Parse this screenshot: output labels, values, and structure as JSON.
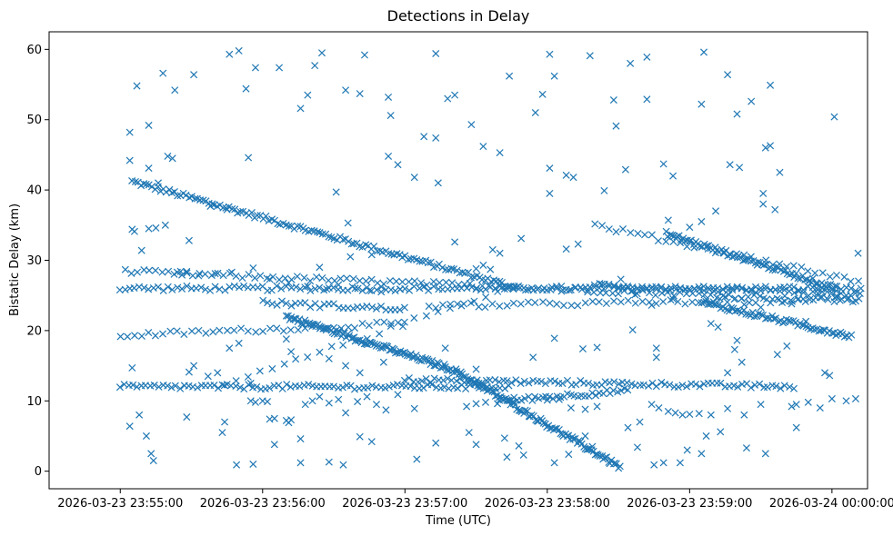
{
  "chart_data": {
    "type": "scatter",
    "title": "Detections in Delay",
    "xlabel": "Time (UTC)",
    "ylabel": "Bistatic Delay (km)",
    "marker": "x",
    "color": "#1f77b4",
    "grid": false,
    "x_unit": "seconds since 2026-03-23 23:55:00",
    "xlim": [
      -30,
      315
    ],
    "ylim": [
      -2.5,
      62.5
    ],
    "x_ticks": [
      {
        "value": 0,
        "label": "2026-03-23 23:55:00"
      },
      {
        "value": 60,
        "label": "2026-03-23 23:56:00"
      },
      {
        "value": 120,
        "label": "2026-03-23 23:57:00"
      },
      {
        "value": 180,
        "label": "2026-03-23 23:58:00"
      },
      {
        "value": 240,
        "label": "2026-03-23 23:59:00"
      },
      {
        "value": 300,
        "label": "2026-03-24 00:00:00"
      }
    ],
    "y_ticks": [
      {
        "value": 0,
        "label": "0"
      },
      {
        "value": 10,
        "label": "10"
      },
      {
        "value": 20,
        "label": "20"
      },
      {
        "value": 30,
        "label": "30"
      },
      {
        "value": 40,
        "label": "40"
      },
      {
        "value": 50,
        "label": "50"
      },
      {
        "value": 60,
        "label": "60"
      }
    ],
    "tracks": [
      {
        "name": "track-a",
        "t_start": 5,
        "t_end": 168,
        "y_start": 41.2,
        "y_end": 26.0,
        "step": 1.2
      },
      {
        "name": "track-b",
        "t_start": 0,
        "t_end": 312,
        "y_start": 26.0,
        "y_end": 26.0,
        "step": 2.0
      },
      {
        "name": "track-c",
        "t_start": 2,
        "t_end": 312,
        "y_start": 28.4,
        "y_end": 24.2,
        "step": 2.6
      },
      {
        "name": "track-d",
        "t_start": 0,
        "t_end": 120,
        "y_start": 19.3,
        "y_end": 21.0,
        "step": 3.0
      },
      {
        "name": "track-e",
        "t_start": 44,
        "t_end": 163,
        "y_start": 12.2,
        "y_end": 26.0,
        "step": 5.0
      },
      {
        "name": "track-f",
        "t_start": 70,
        "t_end": 140,
        "y_start": 22.0,
        "y_end": 14.5,
        "step": 0.7
      },
      {
        "name": "track-g",
        "t_start": 140,
        "t_end": 211,
        "y_start": 14.5,
        "y_end": 0.5,
        "step": 0.7
      },
      {
        "name": "track-h",
        "t_start": 0,
        "t_end": 165,
        "y_start": 12.0,
        "y_end": 12.0,
        "step": 1.8
      },
      {
        "name": "track-i",
        "t_start": 120,
        "t_end": 285,
        "y_start": 13.0,
        "y_end": 12.0,
        "step": 1.8
      },
      {
        "name": "track-j",
        "t_start": 160,
        "t_end": 215,
        "y_start": 10.0,
        "y_end": 11.5,
        "step": 1.5
      },
      {
        "name": "track-k",
        "t_start": 230,
        "t_end": 302,
        "y_start": 33.8,
        "y_end": 26.0,
        "step": 0.9
      },
      {
        "name": "track-l",
        "t_start": 245,
        "t_end": 308,
        "y_start": 24.0,
        "y_end": 19.2,
        "step": 0.9
      },
      {
        "name": "track-m",
        "t_start": 200,
        "t_end": 312,
        "y_start": 35.0,
        "y_end": 27.0,
        "step": 3.0
      },
      {
        "name": "track-n",
        "t_start": 60,
        "t_end": 120,
        "y_start": 24.0,
        "y_end": 23.0,
        "step": 2.0
      },
      {
        "name": "track-o",
        "t_start": 130,
        "t_end": 312,
        "y_start": 23.5,
        "y_end": 24.5,
        "step": 3.0
      },
      {
        "name": "track-p",
        "t_start": 200,
        "t_end": 312,
        "y_start": 26.5,
        "y_end": 25.0,
        "step": 2.0
      }
    ],
    "scatter_points": [
      [
        4,
        48.2
      ],
      [
        4,
        44.2
      ],
      [
        7,
        54.8
      ],
      [
        12,
        49.2
      ],
      [
        18,
        56.6
      ],
      [
        23,
        54.2
      ],
      [
        31,
        56.4
      ],
      [
        46,
        59.3
      ],
      [
        50,
        59.8
      ],
      [
        53,
        54.4
      ],
      [
        57,
        57.4
      ],
      [
        67,
        57.4
      ],
      [
        76,
        51.6
      ],
      [
        79,
        53.5
      ],
      [
        82,
        57.7
      ],
      [
        85,
        59.5
      ],
      [
        95,
        54.2
      ],
      [
        101,
        53.7
      ],
      [
        103,
        59.2
      ],
      [
        113,
        53.2
      ],
      [
        114,
        50.6
      ],
      [
        133,
        59.4
      ],
      [
        138,
        53.0
      ],
      [
        141,
        53.5
      ],
      [
        148,
        49.3
      ],
      [
        153,
        46.2
      ],
      [
        164,
        56.2
      ],
      [
        175,
        51.0
      ],
      [
        178,
        53.6
      ],
      [
        181,
        59.3
      ],
      [
        183,
        56.2
      ],
      [
        198,
        59.1
      ],
      [
        208,
        52.8
      ],
      [
        209,
        49.1
      ],
      [
        215,
        58.0
      ],
      [
        222,
        52.9
      ],
      [
        222,
        58.9
      ],
      [
        245,
        52.2
      ],
      [
        246,
        59.6
      ],
      [
        256,
        56.4
      ],
      [
        260,
        50.8
      ],
      [
        266,
        52.6
      ],
      [
        272,
        46.0
      ],
      [
        274,
        54.9
      ],
      [
        274,
        46.3
      ],
      [
        301,
        50.4
      ],
      [
        4,
        6.4
      ],
      [
        5,
        14.7
      ],
      [
        8,
        8.0
      ],
      [
        11,
        5.0
      ],
      [
        13,
        2.5
      ],
      [
        14,
        1.5
      ],
      [
        28,
        7.7
      ],
      [
        43,
        5.5
      ],
      [
        44,
        7.0
      ],
      [
        49,
        0.9
      ],
      [
        56,
        1.0
      ],
      [
        65,
        3.8
      ],
      [
        71,
        6.9
      ],
      [
        76,
        4.6
      ],
      [
        76,
        1.2
      ],
      [
        88,
        1.3
      ],
      [
        94,
        0.9
      ],
      [
        101,
        4.9
      ],
      [
        106,
        4.2
      ],
      [
        125,
        1.7
      ],
      [
        133,
        4.0
      ],
      [
        147,
        5.5
      ],
      [
        150,
        3.8
      ],
      [
        162,
        4.7
      ],
      [
        163,
        2.0
      ],
      [
        168,
        3.6
      ],
      [
        170,
        2.3
      ],
      [
        183,
        1.2
      ],
      [
        189,
        2.4
      ],
      [
        196,
        5.0
      ],
      [
        199,
        3.5
      ],
      [
        214,
        6.2
      ],
      [
        218,
        3.4
      ],
      [
        225,
        0.9
      ],
      [
        229,
        1.2
      ],
      [
        236,
        1.2
      ],
      [
        239,
        3.0
      ],
      [
        245,
        2.5
      ],
      [
        247,
        5.0
      ],
      [
        264,
        3.3
      ],
      [
        272,
        2.5
      ],
      [
        285,
        6.2
      ],
      [
        285,
        9.5
      ],
      [
        12,
        43.1
      ],
      [
        16,
        41.0
      ],
      [
        20,
        44.8
      ],
      [
        22,
        44.5
      ],
      [
        38,
        37.7
      ],
      [
        45,
        37.2
      ],
      [
        54,
        44.6
      ],
      [
        91,
        39.7
      ],
      [
        96,
        35.3
      ],
      [
        113,
        44.8
      ],
      [
        117,
        43.6
      ],
      [
        124,
        41.8
      ],
      [
        128,
        47.6
      ],
      [
        133,
        47.4
      ],
      [
        134,
        41.0
      ],
      [
        141,
        32.6
      ],
      [
        160,
        45.3
      ],
      [
        181,
        43.1
      ],
      [
        181,
        39.5
      ],
      [
        188,
        42.1
      ],
      [
        191,
        41.8
      ],
      [
        204,
        39.9
      ],
      [
        213,
        42.9
      ],
      [
        229,
        43.7
      ],
      [
        233,
        42.0
      ],
      [
        240,
        34.7
      ],
      [
        257,
        43.6
      ],
      [
        261,
        43.2
      ],
      [
        271,
        39.5
      ],
      [
        278,
        42.5
      ],
      [
        276,
        37.2
      ],
      [
        271,
        38.0
      ],
      [
        251,
        37.0
      ],
      [
        245,
        35.5
      ],
      [
        231,
        35.7
      ],
      [
        193,
        32.3
      ],
      [
        188,
        31.6
      ],
      [
        169,
        33.1
      ],
      [
        157,
        31.5
      ],
      [
        106,
        30.8
      ],
      [
        97,
        30.5
      ],
      [
        84,
        29.0
      ],
      [
        29,
        32.8
      ],
      [
        9,
        31.4
      ],
      [
        5,
        34.4
      ],
      [
        6,
        34.1
      ],
      [
        12,
        34.5
      ],
      [
        15,
        34.6
      ],
      [
        19,
        35.0
      ],
      [
        29,
        14.1
      ],
      [
        31,
        15.0
      ],
      [
        37,
        13.5
      ],
      [
        41,
        14.0
      ],
      [
        46,
        17.5
      ],
      [
        50,
        18.2
      ],
      [
        55,
        12.5
      ],
      [
        70,
        18.8
      ],
      [
        72,
        17.0
      ],
      [
        88,
        16.0
      ],
      [
        95,
        15.0
      ],
      [
        101,
        14.0
      ],
      [
        111,
        15.5
      ],
      [
        137,
        17.5
      ],
      [
        150,
        14.5
      ],
      [
        174,
        16.2
      ],
      [
        183,
        18.9
      ],
      [
        195,
        17.4
      ],
      [
        201,
        17.6
      ],
      [
        216,
        20.1
      ],
      [
        226,
        17.5
      ],
      [
        226,
        16.2
      ],
      [
        249,
        21.0
      ],
      [
        252,
        20.5
      ],
      [
        256,
        14.0
      ],
      [
        259,
        17.3
      ],
      [
        260,
        18.6
      ],
      [
        262,
        15.5
      ],
      [
        277,
        16.6
      ],
      [
        281,
        17.8
      ],
      [
        289,
        21.3
      ],
      [
        297,
        14.0
      ],
      [
        299,
        13.6
      ],
      [
        55,
        10.0
      ],
      [
        57,
        9.8
      ],
      [
        60,
        10.0
      ],
      [
        62,
        9.9
      ],
      [
        63,
        7.4
      ],
      [
        65,
        7.5
      ],
      [
        70,
        7.2
      ],
      [
        72,
        7.3
      ],
      [
        78,
        9.5
      ],
      [
        81,
        10.0
      ],
      [
        84,
        10.6
      ],
      [
        88,
        9.7
      ],
      [
        92,
        10.2
      ],
      [
        95,
        8.3
      ],
      [
        100,
        9.9
      ],
      [
        104,
        10.6
      ],
      [
        108,
        9.5
      ],
      [
        112,
        8.7
      ],
      [
        117,
        10.9
      ],
      [
        124,
        8.9
      ],
      [
        146,
        9.2
      ],
      [
        150,
        9.6
      ],
      [
        154,
        9.8
      ],
      [
        159,
        9.6
      ],
      [
        166,
        9.8
      ],
      [
        180,
        10.1
      ],
      [
        185,
        10.2
      ],
      [
        190,
        9.0
      ],
      [
        196,
        8.8
      ],
      [
        201,
        9.2
      ],
      [
        219,
        7.0
      ],
      [
        224,
        9.5
      ],
      [
        227,
        9.0
      ],
      [
        231,
        8.5
      ],
      [
        234,
        8.3
      ],
      [
        237,
        8.0
      ],
      [
        240,
        8.1
      ],
      [
        244,
        8.2
      ],
      [
        249,
        8.0
      ],
      [
        253,
        5.6
      ],
      [
        256,
        8.9
      ],
      [
        263,
        8.0
      ],
      [
        270,
        9.5
      ],
      [
        283,
        9.2
      ],
      [
        290,
        9.8
      ],
      [
        295,
        9.0
      ],
      [
        300,
        10.3
      ],
      [
        306,
        10.0
      ],
      [
        310,
        10.3
      ],
      [
        24,
        28.3
      ],
      [
        26,
        27.9
      ],
      [
        28,
        28.4
      ],
      [
        33,
        27.8
      ],
      [
        40,
        28.1
      ],
      [
        47,
        28.3
      ],
      [
        56,
        28.9
      ],
      [
        63,
        27.3
      ],
      [
        71,
        26.8
      ],
      [
        79,
        26.3
      ],
      [
        87,
        25.9
      ],
      [
        92,
        26.5
      ],
      [
        99,
        26.0
      ],
      [
        105,
        25.7
      ],
      [
        110,
        25.5
      ],
      [
        118,
        25.9
      ],
      [
        150,
        28.8
      ],
      [
        153,
        29.3
      ],
      [
        156,
        28.7
      ],
      [
        160,
        31.0
      ],
      [
        172,
        25.8
      ],
      [
        186,
        25.6
      ],
      [
        197,
        25.5
      ],
      [
        203,
        26.6
      ],
      [
        211,
        27.3
      ],
      [
        217,
        25.1
      ],
      [
        224,
        23.6
      ],
      [
        233,
        24.5
      ],
      [
        255,
        24.8
      ],
      [
        263,
        23.7
      ],
      [
        270,
        23.3
      ],
      [
        279,
        24.0
      ],
      [
        283,
        23.8
      ],
      [
        294,
        25.8
      ],
      [
        302,
        24.9
      ],
      [
        311,
        31.0
      ]
    ]
  }
}
